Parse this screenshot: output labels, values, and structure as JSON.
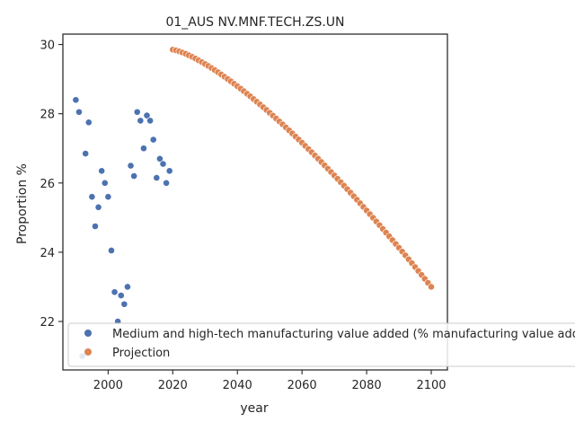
{
  "chart_data": {
    "type": "scatter",
    "title": "01_AUS NV.MNF.TECH.ZS.UN",
    "xlabel": "year",
    "ylabel": "Proportion %",
    "xlim": [
      1986,
      2105
    ],
    "ylim": [
      20.6,
      30.3
    ],
    "xticks": [
      2000,
      2020,
      2040,
      2060,
      2080,
      2100
    ],
    "yticks": [
      22,
      24,
      26,
      28,
      30
    ],
    "grid": false,
    "legend_position": "lower-left",
    "colors": {
      "observed": "#4c72b0",
      "projection": "#dd8452"
    },
    "series": [
      {
        "name": "Medium and high-tech manufacturing value added (% manufacturing value added)",
        "points": [
          [
            1990,
            28.4
          ],
          [
            1991,
            28.05
          ],
          [
            1992,
            21.0
          ],
          [
            1993,
            26.85
          ],
          [
            1994,
            27.75
          ],
          [
            1995,
            25.6
          ],
          [
            1996,
            24.75
          ],
          [
            1997,
            25.3
          ],
          [
            1998,
            26.35
          ],
          [
            1999,
            26.0
          ],
          [
            2000,
            25.6
          ],
          [
            2001,
            24.05
          ],
          [
            2002,
            22.85
          ],
          [
            2003,
            22.0
          ],
          [
            2004,
            22.75
          ],
          [
            2005,
            22.5
          ],
          [
            2006,
            23.0
          ],
          [
            2007,
            26.5
          ],
          [
            2008,
            26.2
          ],
          [
            2009,
            28.05
          ],
          [
            2010,
            27.8
          ],
          [
            2011,
            27.0
          ],
          [
            2012,
            27.95
          ],
          [
            2013,
            27.8
          ],
          [
            2014,
            27.25
          ],
          [
            2015,
            26.15
          ],
          [
            2016,
            26.7
          ],
          [
            2017,
            26.55
          ],
          [
            2018,
            26.0
          ],
          [
            2019,
            26.35
          ],
          [
            2020,
            29.85
          ]
        ]
      },
      {
        "name": "Projection",
        "start": [
          2020,
          29.85
        ],
        "end": [
          2100,
          23.0
        ],
        "curvature": 1.35
      }
    ]
  }
}
